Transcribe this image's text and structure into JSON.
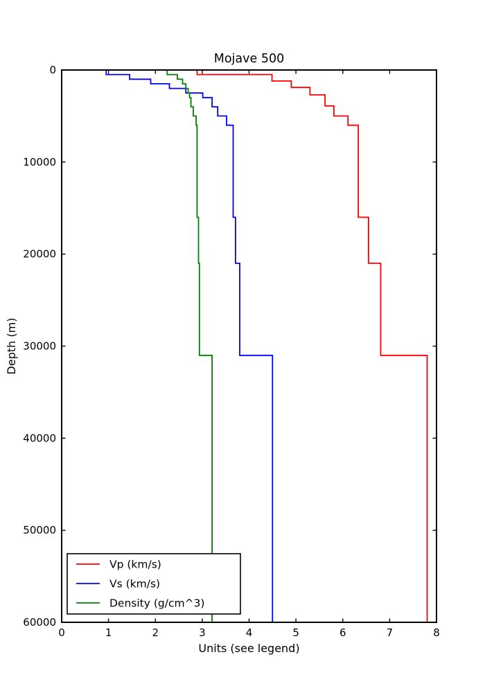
{
  "figure": {
    "background_color": "#ffffff",
    "text_color": "#000000",
    "spine_color": "#000000"
  },
  "chart_data": {
    "type": "line",
    "subtype": "step-profile",
    "title": "Mojave 500",
    "xlabel": "Units (see legend)",
    "ylabel": "Depth (m)",
    "xlim": [
      0,
      8
    ],
    "depth_range": [
      0,
      60000
    ],
    "y_axis_inverted": true,
    "grid": false,
    "x_ticks": [
      0,
      1,
      2,
      3,
      4,
      5,
      6,
      7,
      8
    ],
    "y_ticks": [
      0,
      10000,
      20000,
      30000,
      40000,
      50000,
      60000
    ],
    "legend": {
      "position": "lower-left",
      "entries": [
        "Vp (km/s)",
        "Vs (km/s)",
        "Density (g/cm^3)"
      ]
    },
    "series": [
      {
        "name": "Vp (km/s)",
        "color": "#ff0000",
        "points_depth_value": [
          [
            0,
            1.69
          ],
          [
            500,
            2.89
          ],
          [
            1200,
            4.49
          ],
          [
            1900,
            4.9
          ],
          [
            2700,
            5.3
          ],
          [
            3900,
            5.62
          ],
          [
            5000,
            5.81
          ],
          [
            6000,
            6.11
          ],
          [
            16000,
            6.33
          ],
          [
            21000,
            6.55
          ],
          [
            31000,
            6.81
          ],
          [
            60000,
            7.8
          ]
        ]
      },
      {
        "name": "Vs (km/s)",
        "color": "#0000ff",
        "points_depth_value": [
          [
            0,
            0.63
          ],
          [
            500,
            0.95
          ],
          [
            1000,
            1.45
          ],
          [
            1500,
            1.9
          ],
          [
            2000,
            2.3
          ],
          [
            2500,
            2.65
          ],
          [
            3000,
            3.01
          ],
          [
            4000,
            3.21
          ],
          [
            5000,
            3.33
          ],
          [
            6000,
            3.52
          ],
          [
            16000,
            3.66
          ],
          [
            21000,
            3.71
          ],
          [
            31000,
            3.8
          ],
          [
            60000,
            4.5
          ]
        ]
      },
      {
        "name": "Density (g/cm^3)",
        "color": "#007f00",
        "points_depth_value": [
          [
            0,
            2.0
          ],
          [
            500,
            2.25
          ],
          [
            1000,
            2.47
          ],
          [
            1500,
            2.58
          ],
          [
            2000,
            2.65
          ],
          [
            2500,
            2.7
          ],
          [
            3000,
            2.73
          ],
          [
            4000,
            2.76
          ],
          [
            5000,
            2.81
          ],
          [
            6000,
            2.87
          ],
          [
            16000,
            2.89
          ],
          [
            21000,
            2.92
          ],
          [
            31000,
            2.94
          ],
          [
            60000,
            3.21
          ]
        ]
      }
    ]
  }
}
